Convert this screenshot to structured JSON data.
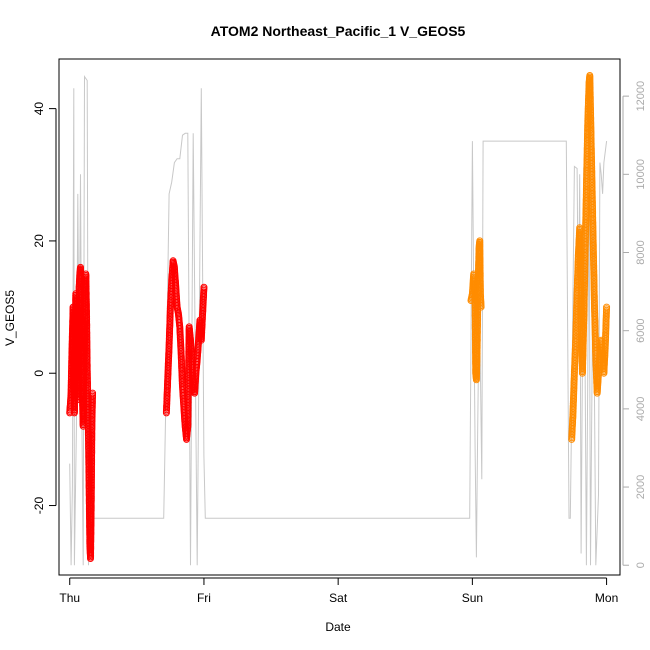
{
  "chart_data": {
    "type": "scatter",
    "title": "ATOM2 Northeast_Pacific_1 V_GEOS5",
    "xlabel": "Date",
    "ylabel": "V_GEOS5",
    "x_ticks": [
      "Thu",
      "Fri",
      "Sat",
      "Sun",
      "Mon"
    ],
    "xlim_days": [
      -0.08,
      4.1
    ],
    "ylim": [
      -30.5,
      47.5
    ],
    "y_ticks": [
      -20,
      0,
      20,
      40
    ],
    "y2_ticks": [
      0,
      2000,
      4000,
      6000,
      8000,
      10000,
      12000
    ],
    "y2lim": [
      -250,
      12950
    ],
    "grid": false,
    "legend": "none",
    "colors": {
      "series1": "#ff0000",
      "series2": "#ff8c00",
      "altitude": "#c8c8c8"
    },
    "series": [
      {
        "color": "#ff0000",
        "segments": [
          [
            [
              0.0,
              -6
            ],
            [
              0.01,
              -3
            ],
            [
              0.015,
              2
            ],
            [
              0.02,
              6
            ],
            [
              0.025,
              10
            ],
            [
              0.03,
              -2
            ],
            [
              0.035,
              -6
            ],
            [
              0.04,
              4
            ],
            [
              0.045,
              12
            ],
            [
              0.05,
              8
            ],
            [
              0.055,
              0
            ],
            [
              0.06,
              -4
            ],
            [
              0.065,
              6
            ],
            [
              0.07,
              13
            ],
            [
              0.075,
              15
            ],
            [
              0.08,
              16
            ],
            [
              0.085,
              10
            ],
            [
              0.09,
              2
            ],
            [
              0.095,
              -4
            ],
            [
              0.1,
              -8
            ],
            [
              0.105,
              -2
            ],
            [
              0.11,
              5
            ],
            [
              0.115,
              12
            ],
            [
              0.12,
              15
            ],
            [
              0.125,
              9
            ],
            [
              0.13,
              1
            ],
            [
              0.135,
              -5
            ],
            [
              0.14,
              -10
            ],
            [
              0.145,
              -18
            ],
            [
              0.15,
              -26
            ],
            [
              0.155,
              -28
            ],
            [
              0.16,
              -20
            ],
            [
              0.165,
              -8
            ],
            [
              0.17,
              -3
            ]
          ],
          [
            [
              0.72,
              -6
            ],
            [
              0.73,
              -1
            ],
            [
              0.74,
              4
            ],
            [
              0.75,
              10
            ],
            [
              0.76,
              14
            ],
            [
              0.77,
              17
            ],
            [
              0.78,
              16
            ],
            [
              0.79,
              13
            ],
            [
              0.8,
              10
            ],
            [
              0.81,
              9
            ],
            [
              0.82,
              7
            ],
            [
              0.83,
              3
            ],
            [
              0.84,
              -2
            ],
            [
              0.85,
              -5
            ],
            [
              0.86,
              -8
            ],
            [
              0.87,
              -10
            ],
            [
              0.88,
              -8
            ],
            [
              0.89,
              7
            ],
            [
              0.9,
              5
            ],
            [
              0.91,
              2
            ],
            [
              0.92,
              -2
            ],
            [
              0.93,
              -3
            ],
            [
              0.94,
              0
            ],
            [
              0.95,
              2
            ],
            [
              0.96,
              5
            ],
            [
              0.97,
              8
            ],
            [
              0.98,
              5
            ],
            [
              0.99,
              9
            ],
            [
              1.0,
              13
            ]
          ]
        ]
      },
      {
        "color": "#ff8c00",
        "segments": [
          [
            [
              2.99,
              11
            ],
            [
              3.0,
              12
            ],
            [
              3.01,
              15
            ],
            [
              3.02,
              12
            ],
            [
              3.025,
              0
            ],
            [
              3.03,
              -1
            ],
            [
              3.035,
              3
            ],
            [
              3.04,
              10
            ],
            [
              3.045,
              15
            ],
            [
              3.05,
              19
            ],
            [
              3.055,
              20
            ],
            [
              3.06,
              12
            ],
            [
              3.065,
              10
            ]
          ],
          [
            [
              3.74,
              -10
            ],
            [
              3.75,
              -6
            ],
            [
              3.76,
              0
            ],
            [
              3.77,
              5
            ],
            [
              3.78,
              12
            ],
            [
              3.79,
              18
            ],
            [
              3.8,
              22
            ],
            [
              3.81,
              12
            ],
            [
              3.82,
              0
            ],
            [
              3.83,
              8
            ],
            [
              3.84,
              18
            ],
            [
              3.85,
              28
            ],
            [
              3.86,
              38
            ],
            [
              3.87,
              44
            ],
            [
              3.875,
              45
            ],
            [
              3.88,
              40
            ],
            [
              3.89,
              30
            ],
            [
              3.9,
              20
            ],
            [
              3.91,
              10
            ],
            [
              3.92,
              2
            ],
            [
              3.93,
              -3
            ],
            [
              3.94,
              0
            ],
            [
              3.95,
              3
            ],
            [
              3.96,
              5
            ],
            [
              3.97,
              3
            ],
            [
              3.98,
              0
            ],
            [
              3.99,
              4
            ],
            [
              4.0,
              10
            ]
          ]
        ]
      }
    ],
    "altitude": [
      [
        0.0,
        2600
      ],
      [
        0.01,
        0
      ],
      [
        0.02,
        2000
      ],
      [
        0.03,
        12200
      ],
      [
        0.035,
        0
      ],
      [
        0.05,
        3500
      ],
      [
        0.06,
        9500
      ],
      [
        0.07,
        5000
      ],
      [
        0.08,
        10000
      ],
      [
        0.09,
        4000
      ],
      [
        0.1,
        0
      ],
      [
        0.11,
        12500
      ],
      [
        0.13,
        12400
      ],
      [
        0.14,
        0
      ],
      [
        0.16,
        3300
      ],
      [
        0.17,
        1200
      ],
      [
        0.3,
        1200
      ],
      [
        0.7,
        1200
      ],
      [
        0.72,
        5000
      ],
      [
        0.74,
        9500
      ],
      [
        0.76,
        9800
      ],
      [
        0.78,
        10300
      ],
      [
        0.8,
        10400
      ],
      [
        0.82,
        10400
      ],
      [
        0.84,
        11000
      ],
      [
        0.86,
        11050
      ],
      [
        0.88,
        11050
      ],
      [
        0.9,
        0
      ],
      [
        0.92,
        11050
      ],
      [
        0.95,
        0
      ],
      [
        0.98,
        12200
      ],
      [
        1.0,
        2800
      ],
      [
        1.01,
        1200
      ],
      [
        2.0,
        1200
      ],
      [
        2.96,
        1200
      ],
      [
        2.98,
        1200
      ],
      [
        3.0,
        10850
      ],
      [
        3.01,
        7000
      ],
      [
        3.02,
        3000
      ],
      [
        3.03,
        200
      ],
      [
        3.04,
        3500
      ],
      [
        3.05,
        6500
      ],
      [
        3.06,
        5000
      ],
      [
        3.07,
        2200
      ],
      [
        3.08,
        10850
      ],
      [
        3.5,
        10850
      ],
      [
        3.7,
        10850
      ],
      [
        3.72,
        1200
      ],
      [
        3.73,
        1200
      ],
      [
        3.74,
        4000
      ],
      [
        3.76,
        10200
      ],
      [
        3.78,
        10150
      ],
      [
        3.79,
        6000
      ],
      [
        3.8,
        10000
      ],
      [
        3.81,
        300
      ],
      [
        3.83,
        10200
      ],
      [
        3.85,
        0
      ],
      [
        3.87,
        9600
      ],
      [
        3.88,
        0
      ],
      [
        3.9,
        8500
      ],
      [
        3.92,
        0
      ],
      [
        3.94,
        1800
      ],
      [
        3.95,
        10300
      ],
      [
        3.96,
        10000
      ],
      [
        3.97,
        9500
      ],
      [
        3.98,
        10300
      ],
      [
        4.0,
        10850
      ]
    ]
  }
}
